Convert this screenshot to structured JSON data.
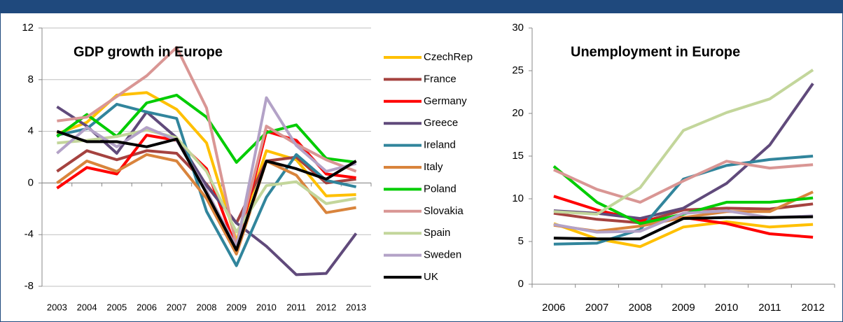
{
  "chart_data": [
    {
      "type": "line",
      "title": "GDP growth in Europe",
      "categories": [
        "2003",
        "2004",
        "2005",
        "2006",
        "2007",
        "2008",
        "2009",
        "2010",
        "2011",
        "2012",
        "2013"
      ],
      "ylim": [
        -8,
        12
      ],
      "yticks": [
        -8,
        -4,
        0,
        4,
        8,
        12
      ],
      "grid": true,
      "legend": "right",
      "series": [
        {
          "name": "CzechRep",
          "color": "#ffc000",
          "values": [
            3.8,
            4.7,
            6.8,
            7.0,
            5.7,
            3.1,
            -4.5,
            2.5,
            1.8,
            -1.0,
            -0.9
          ]
        },
        {
          "name": "France",
          "color": "#a5423f",
          "values": [
            0.9,
            2.5,
            1.8,
            2.5,
            2.3,
            -0.1,
            -3.1,
            1.7,
            2.0,
            0.0,
            0.3
          ]
        },
        {
          "name": "Germany",
          "color": "#ff0000",
          "values": [
            -0.4,
            1.2,
            0.7,
            3.7,
            3.3,
            1.1,
            -5.1,
            4.0,
            3.3,
            0.7,
            0.4
          ]
        },
        {
          "name": "Greece",
          "color": "#604a7b",
          "values": [
            5.9,
            4.4,
            2.3,
            5.5,
            3.5,
            -0.2,
            -3.1,
            -4.9,
            -7.1,
            -7.0,
            -3.9
          ]
        },
        {
          "name": "Ireland",
          "color": "#31859c",
          "values": [
            3.7,
            4.2,
            6.1,
            5.5,
            5.0,
            -2.2,
            -6.4,
            -1.1,
            2.2,
            0.2,
            -0.3
          ]
        },
        {
          "name": "Italy",
          "color": "#d9843c",
          "values": [
            0.0,
            1.7,
            0.9,
            2.2,
            1.7,
            -1.2,
            -5.5,
            1.7,
            0.6,
            -2.3,
            -1.9
          ]
        },
        {
          "name": "Poland",
          "color": "#00cc00",
          "values": [
            3.6,
            5.3,
            3.6,
            6.2,
            6.8,
            5.1,
            1.6,
            3.9,
            4.5,
            1.9,
            1.6
          ]
        },
        {
          "name": "Slovakia",
          "color": "#d99694",
          "values": [
            4.8,
            5.1,
            6.7,
            8.3,
            10.5,
            5.8,
            -4.9,
            4.4,
            3.0,
            1.8,
            0.9
          ]
        },
        {
          "name": "Spain",
          "color": "#c3d69b",
          "values": [
            3.1,
            3.3,
            3.6,
            4.1,
            3.5,
            0.9,
            -3.8,
            -0.2,
            0.1,
            -1.6,
            -1.2
          ]
        },
        {
          "name": "Sweden",
          "color": "#b3a2c7",
          "values": [
            2.3,
            4.3,
            2.8,
            4.3,
            3.3,
            -0.6,
            -5.0,
            6.6,
            2.9,
            0.9,
            1.5
          ]
        },
        {
          "name": "UK",
          "color": "#000000",
          "values": [
            4.0,
            3.2,
            3.2,
            2.8,
            3.4,
            -0.8,
            -5.2,
            1.7,
            1.1,
            0.3,
            1.7
          ]
        }
      ]
    },
    {
      "type": "line",
      "title": "Unemployment in Europe",
      "categories": [
        "2006",
        "2007",
        "2008",
        "2009",
        "2010",
        "2011",
        "2012"
      ],
      "ylim": [
        0,
        30
      ],
      "yticks": [
        0,
        5,
        10,
        15,
        20,
        25,
        30
      ],
      "grid": false,
      "series": [
        {
          "color": "#ffc000",
          "values": [
            7.1,
            5.3,
            4.4,
            6.7,
            7.3,
            6.7,
            7.0
          ]
        },
        {
          "color": "#a5423f",
          "values": [
            8.3,
            7.6,
            7.2,
            8.7,
            8.9,
            8.8,
            9.4
          ]
        },
        {
          "color": "#ff0000",
          "values": [
            10.3,
            8.7,
            7.5,
            7.8,
            7.1,
            5.9,
            5.5
          ]
        },
        {
          "color": "#604a7b",
          "values": [
            8.6,
            8.3,
            7.7,
            8.9,
            11.8,
            16.3,
            23.5
          ]
        },
        {
          "color": "#31859c",
          "values": [
            4.7,
            4.8,
            6.4,
            12.3,
            13.9,
            14.6,
            15.0
          ]
        },
        {
          "color": "#d9843c",
          "values": [
            6.9,
            6.2,
            6.8,
            7.8,
            8.5,
            8.5,
            10.8
          ]
        },
        {
          "color": "#00cc00",
          "values": [
            13.8,
            9.6,
            7.1,
            8.2,
            9.6,
            9.6,
            10.1
          ]
        },
        {
          "color": "#d99694",
          "values": [
            13.4,
            11.1,
            9.6,
            12.1,
            14.4,
            13.6,
            14.0
          ]
        },
        {
          "color": "#c3d69b",
          "values": [
            8.5,
            8.2,
            11.3,
            18.0,
            20.1,
            21.7,
            25.1
          ]
        },
        {
          "color": "#b3a2c7",
          "values": [
            7.0,
            6.1,
            6.2,
            8.3,
            8.6,
            7.8,
            8.0
          ]
        },
        {
          "color": "#000000",
          "values": [
            5.4,
            5.3,
            5.3,
            7.7,
            7.8,
            7.8,
            7.9
          ]
        }
      ]
    }
  ]
}
